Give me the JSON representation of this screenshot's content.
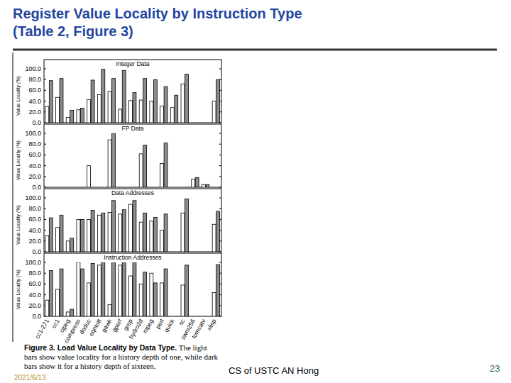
{
  "slide": {
    "title": [
      "Register Value Locality by Instruction Type",
      "(Table 2, Figure 3)"
    ],
    "caption_title": "Figure 3. Load Value Locality by Data Type.",
    "caption_text": "The light bars show value locality for a history depth of one, while dark bars show it for a history depth of sixteen.",
    "date": "2021/6/13",
    "footer": "CS of USTC AN Hong",
    "page": "23"
  },
  "chart_data": [
    {
      "type": "bar",
      "title": "Integer Data",
      "y_label": "Value Locality (%)",
      "categories": [
        null,
        null,
        null,
        null,
        null,
        null,
        null,
        null,
        null,
        null,
        null,
        null,
        null,
        null,
        null,
        null,
        null
      ],
      "series": [
        {
          "color": "#ffffff",
          "values": [
            30,
            47,
            10,
            24,
            43,
            52,
            58,
            25,
            41,
            42,
            40,
            31,
            28,
            72,
            null,
            null,
            40
          ]
        },
        {
          "color": "#8c8c8c",
          "values": [
            78,
            82,
            23,
            27,
            79,
            99,
            82,
            97,
            56,
            82,
            80,
            67,
            51,
            90,
            null,
            null,
            80
          ]
        }
      ],
      "ylim": [
        0,
        100
      ],
      "yticks": [
        {
          "value": 0,
          "label": "0.0"
        },
        {
          "value": 20,
          "label": "20.0"
        },
        {
          "value": 40,
          "label": "40.0"
        },
        {
          "value": 60,
          "label": "60.0"
        },
        {
          "value": 80,
          "label": "80.0"
        },
        {
          "value": 100,
          "label": "100.0"
        }
      ],
      "grid": false,
      "tick_labels": "y"
    },
    {
      "type": "bar",
      "title": "FP Data",
      "y_label": "Value Locality (%)",
      "categories": [
        null,
        null,
        null,
        null,
        null,
        null,
        null,
        null,
        null,
        null,
        null,
        null,
        null,
        null,
        null,
        null,
        null
      ],
      "series": [
        {
          "color": "#ffffff",
          "values": [
            null,
            null,
            null,
            null,
            40,
            null,
            88,
            null,
            null,
            62,
            null,
            44,
            null,
            null,
            15,
            5,
            null
          ]
        },
        {
          "color": "#8c8c8c",
          "values": [
            null,
            null,
            null,
            null,
            null,
            null,
            100,
            null,
            null,
            78,
            null,
            82,
            null,
            null,
            18,
            5,
            null
          ]
        }
      ],
      "ylim": [
        0,
        100
      ],
      "yticks": [
        {
          "value": 0,
          "label": "0.0"
        },
        {
          "value": 20,
          "label": "20.0"
        },
        {
          "value": 40,
          "label": "40.0"
        },
        {
          "value": 60,
          "label": "60.0"
        },
        {
          "value": 80,
          "label": "80.0"
        },
        {
          "value": 100,
          "label": "100.0"
        }
      ],
      "grid": false,
      "tick_labels": "y"
    },
    {
      "type": "bar",
      "title": "Data Addresses",
      "y_label": "Value Locality (%)",
      "categories": [
        null,
        null,
        null,
        null,
        null,
        null,
        null,
        null,
        null,
        null,
        null,
        null,
        null,
        null,
        null,
        null,
        null
      ],
      "series": [
        {
          "color": "#ffffff",
          "values": [
            30,
            45,
            20,
            60,
            60,
            68,
            73,
            70,
            88,
            55,
            57,
            40,
            null,
            72,
            null,
            null,
            51
          ]
        },
        {
          "color": "#8c8c8c",
          "values": [
            63,
            68,
            25,
            60,
            77,
            72,
            95,
            78,
            95,
            72,
            64,
            70,
            null,
            98,
            null,
            null,
            75
          ]
        }
      ],
      "ylim": [
        0,
        100
      ],
      "yticks": [
        {
          "value": 0,
          "label": "0.0"
        },
        {
          "value": 20,
          "label": "20.0"
        },
        {
          "value": 40,
          "label": "40.0"
        },
        {
          "value": 60,
          "label": "60.0"
        },
        {
          "value": 80,
          "label": "80.0"
        },
        {
          "value": 100,
          "label": "100.0"
        }
      ],
      "grid": false,
      "tick_labels": "y"
    },
    {
      "type": "bar",
      "title": "Instruction Addresses",
      "y_label": "Value Locality (%)",
      "categories": [
        "cc1-271",
        "cc1",
        "cjpeg",
        "compress",
        "doduc",
        "eqntott",
        "gawk",
        "gperf",
        "grep",
        "hydro2d",
        "mpeg",
        "perl",
        "quick",
        "sc",
        "swm256",
        "tomcatv",
        "xlisp"
      ],
      "series": [
        {
          "color": "#ffffff",
          "values": [
            30,
            50,
            8,
            100,
            62,
            95,
            22,
            95,
            75,
            60,
            80,
            62,
            null,
            58,
            null,
            null,
            44
          ]
        },
        {
          "color": "#8c8c8c",
          "values": [
            85,
            88,
            13,
            88,
            98,
            100,
            100,
            100,
            100,
            82,
            62,
            88,
            null,
            95,
            null,
            null,
            96
          ]
        }
      ],
      "ylim": [
        0,
        100
      ],
      "yticks": [
        {
          "value": 0,
          "label": "0.0"
        },
        {
          "value": 20,
          "label": "20.0"
        },
        {
          "value": 40,
          "label": "40.0"
        },
        {
          "value": 60,
          "label": "60.0"
        },
        {
          "value": 80,
          "label": "80.0"
        },
        {
          "value": 100,
          "label": "100.0"
        }
      ],
      "grid": false
    }
  ]
}
